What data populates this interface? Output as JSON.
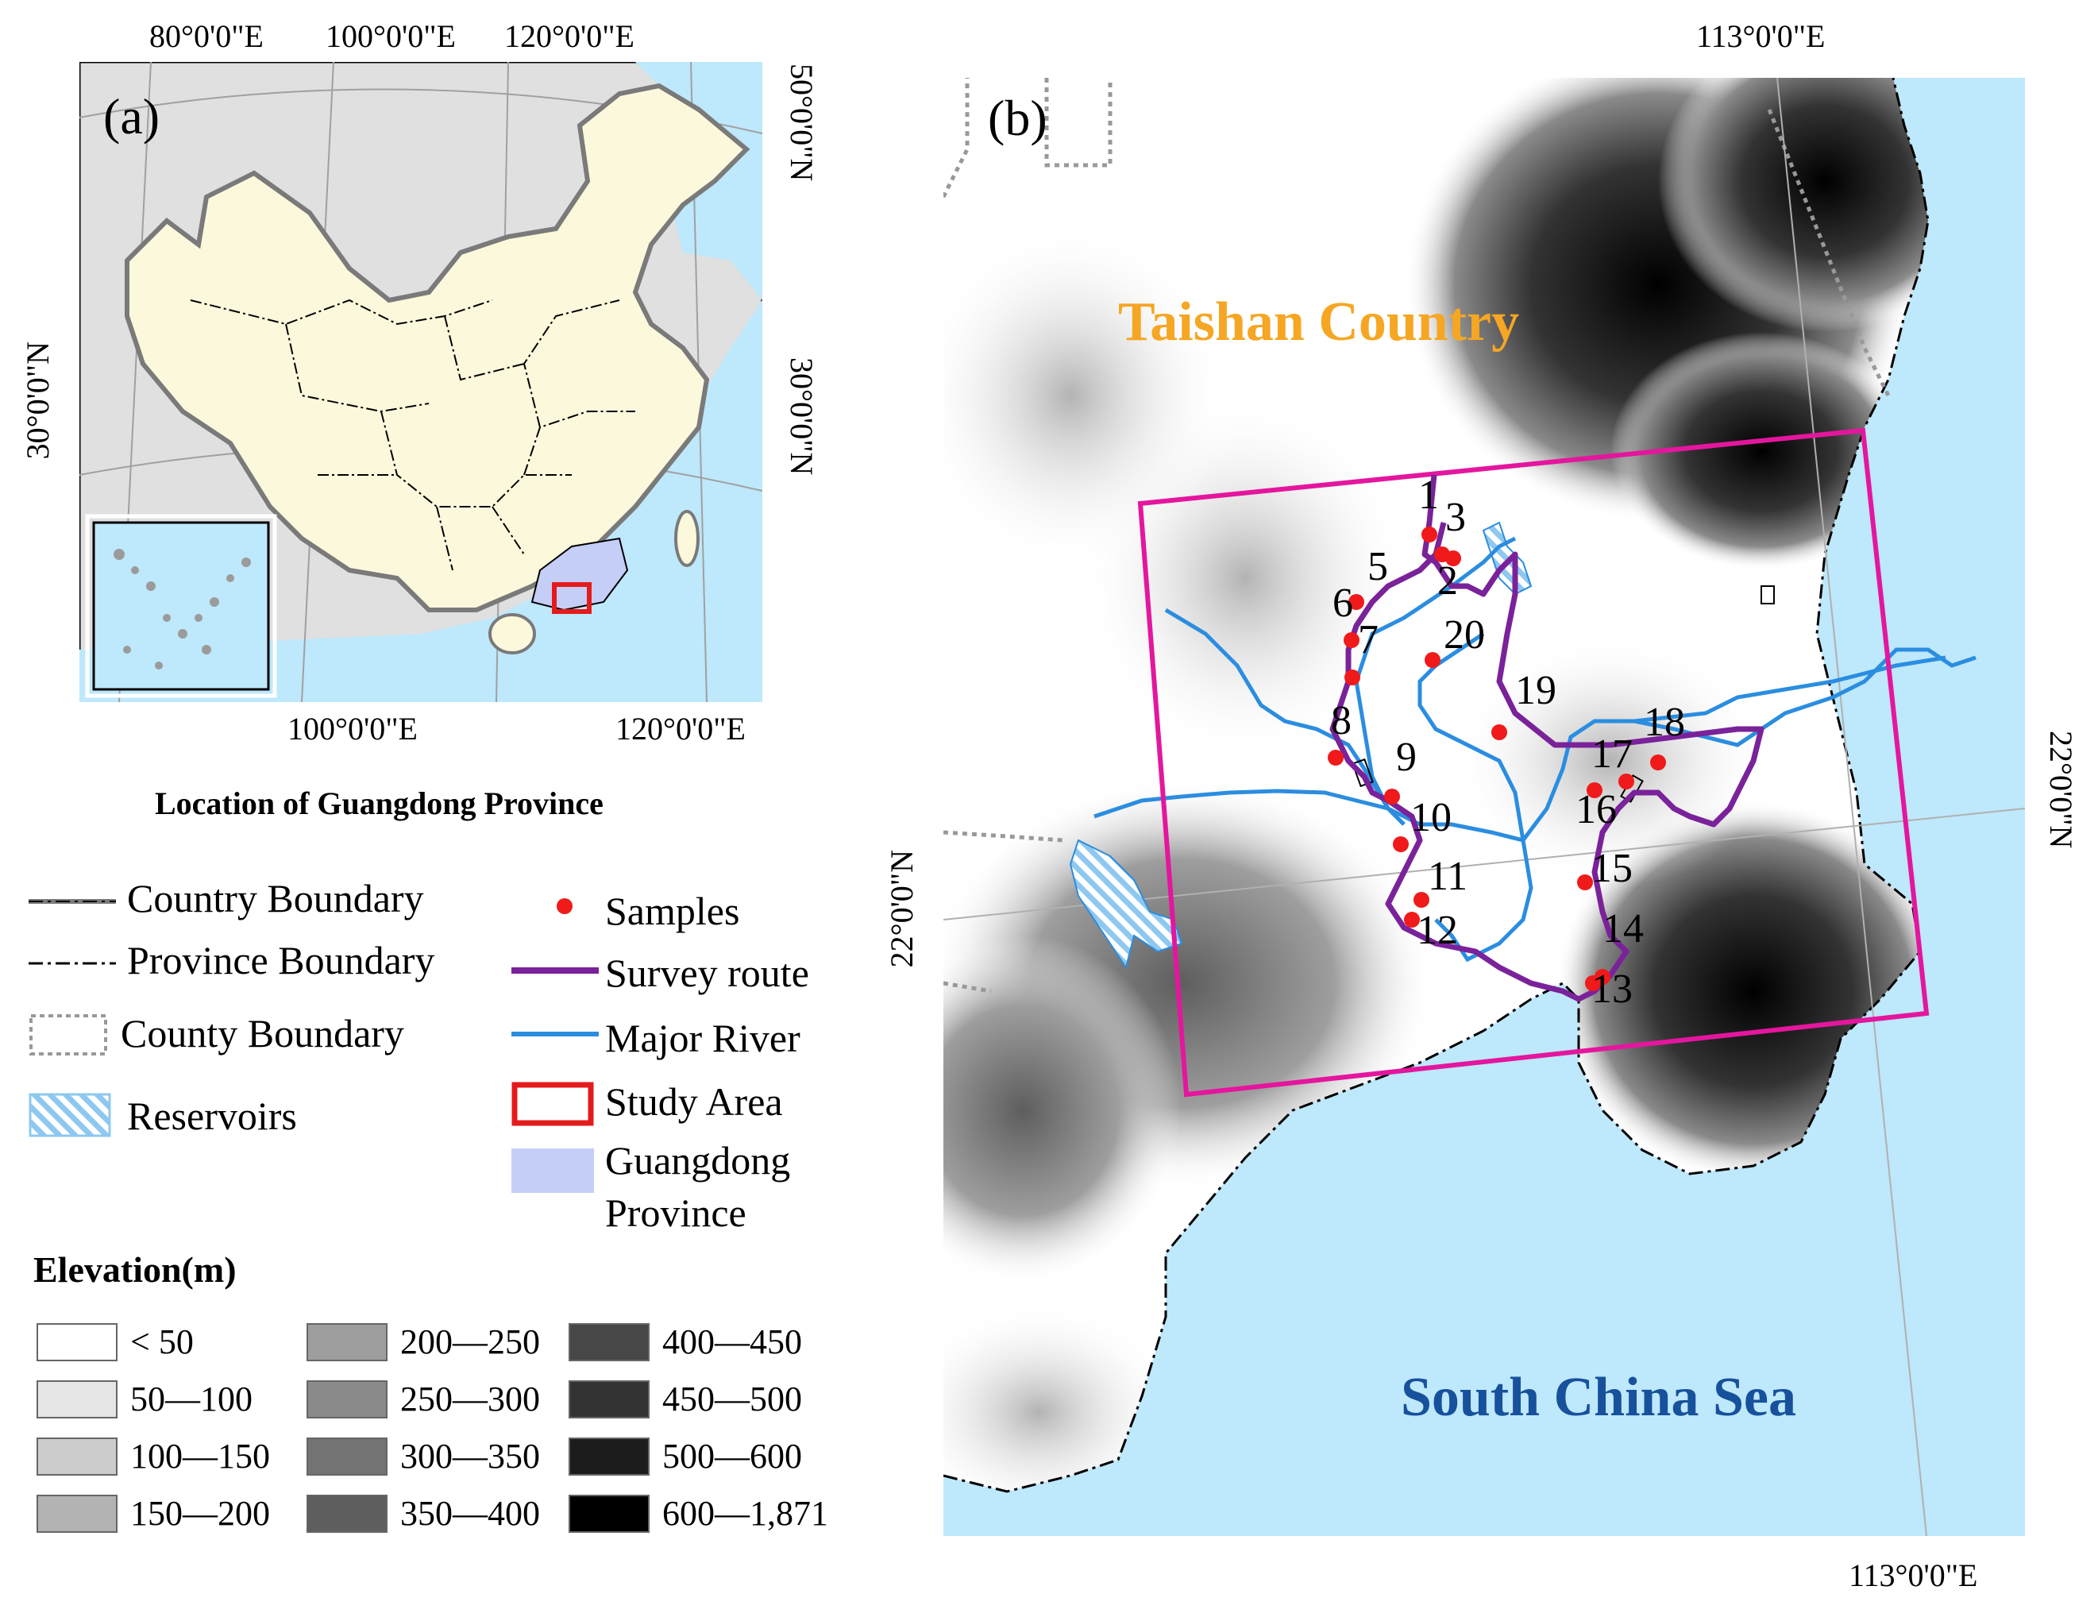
{
  "panel_a": {
    "label": "(a)",
    "caption": "Location of Guangdong Province",
    "top_ticks": [
      "80°0'0\"E",
      "100°0'0\"E",
      "120°0'0\"E"
    ],
    "bottom_ticks": [
      "100°0'0\"E",
      "120°0'0\"E"
    ],
    "left_tick": "30°0'0\"N",
    "right_ticks": [
      "50°0'0\"N",
      "30°0'0\"N"
    ],
    "colors": {
      "land": "#fbf8dc",
      "sea": "#bee8fb",
      "outside": "#e0e0e0",
      "guangdong": "#c5cef6",
      "study_area": "#e41b1b"
    }
  },
  "panel_b": {
    "label": "(b)",
    "top_tick": "113°0'0\"E",
    "bottom_tick": "113°0'0\"E",
    "right_tick": "22°0'0\"N",
    "left_tick": "22°0'0\"N",
    "place_names": {
      "county": "Taishan Country",
      "sea": "South China Sea"
    },
    "sample_labels": [
      "1",
      "2",
      "3",
      "5",
      "6",
      "7",
      "8",
      "9",
      "10",
      "11",
      "12",
      "13",
      "14",
      "15",
      "16",
      "17",
      "18",
      "19",
      "20"
    ],
    "colors": {
      "route": "#7a229a",
      "river": "#2b8de0",
      "samples": "#f01a1a",
      "box": "#e4169e",
      "sea": "#bee8fb"
    }
  },
  "legend": {
    "country_boundary": "Country Boundary",
    "province_boundary": "Province Boundary",
    "county_boundary": "County Boundary",
    "reservoirs": "Reservoirs",
    "samples": "Samples",
    "survey_route": "Survey route",
    "major_river": "Major River",
    "study_area": "Study Area",
    "guangdong_1": "Guangdong",
    "guangdong_2": "Province"
  },
  "elevation": {
    "title": "Elevation(m)",
    "classes": [
      {
        "label": "< 50",
        "color": "#ffffff"
      },
      {
        "label": "50—100",
        "color": "#e6e6e6"
      },
      {
        "label": "100—150",
        "color": "#cccccc"
      },
      {
        "label": "150—200",
        "color": "#b3b3b3"
      },
      {
        "label": "200—250",
        "color": "#9e9e9e"
      },
      {
        "label": "250—300",
        "color": "#8a8a8a"
      },
      {
        "label": "300—350",
        "color": "#737373"
      },
      {
        "label": "350—400",
        "color": "#5e5e5e"
      },
      {
        "label": "400—450",
        "color": "#474747"
      },
      {
        "label": "450—500",
        "color": "#333333"
      },
      {
        "label": "500—600",
        "color": "#1c1c1c"
      },
      {
        "label": "600—1,871",
        "color": "#000000"
      }
    ]
  }
}
